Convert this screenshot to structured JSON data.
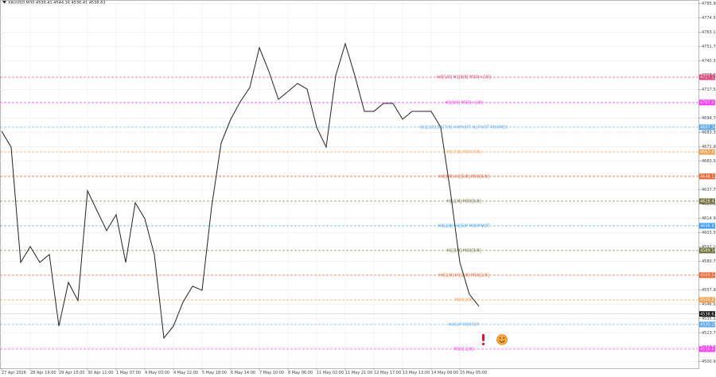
{
  "chart_data": {
    "type": "line",
    "title": "XAUUSD,M30 4536.41 4544.16 4536.41 4538.62",
    "categories": [
      "27 Apr 2026",
      null,
      null,
      "28 Apr 19:00",
      null,
      null,
      "29 Apr 15:00",
      null,
      null,
      "30 Apr 11:00",
      null,
      null,
      "1 May 07:00",
      null,
      null,
      "4 May 03:00",
      null,
      null,
      "4 May 22:00",
      null,
      null,
      "5 May 18:00",
      null,
      null,
      "6 May 14:00",
      null,
      null,
      "7 May 10:00",
      null,
      null,
      "8 May 06:00",
      null,
      null,
      "11 May 02:00",
      null,
      null,
      "11 May 21:00",
      null,
      null,
      "12 May 17:00",
      null,
      null,
      "13 May 13:00",
      null,
      null,
      "14 May 09:00",
      null,
      null,
      "15 May 05:00",
      null,
      null
    ],
    "values": [
      4684.2,
      4671.5,
      4579.7,
      4592.3,
      4579.7,
      4586.0,
      4529.0,
      4563.8,
      4549.3,
      4636.7,
      4620.8,
      4605.0,
      4617.7,
      4579.7,
      4627.2,
      4614.5,
      4586.0,
      4519.5,
      4529.0,
      4548.0,
      4560.7,
      4557.5,
      4624.0,
      4674.7,
      4693.7,
      4707.6,
      4719.0,
      4750.7,
      4731.7,
      4709.5,
      4715.8,
      4722.2,
      4717.7,
      4687.3,
      4671.5,
      4728.5,
      4753.8,
      4728.5,
      4700.0,
      4700.0,
      4706.3,
      4706.3,
      4693.7,
      4700.0,
      4700.0,
      4700.0,
      4687.3,
      4636.7,
      4579.7,
      4554.3,
      4544.8
    ],
    "color": "#222222",
    "ylim": [
      4495.4,
      4786.1
    ],
    "yticks": [
      {
        "value": 4500.9,
        "label": "4500.90"
      },
      {
        "value": 4512.3,
        "label": "4512.30"
      },
      {
        "value": 4523.7,
        "label": "4523.70"
      },
      {
        "value": 4535.1,
        "label": "4535.10"
      },
      {
        "value": 4546.5,
        "label": "4546.50"
      },
      {
        "value": 4557.9,
        "label": "4557.90"
      },
      {
        "value": 4569.3,
        "label": "4569.30"
      },
      {
        "value": 4580.7,
        "label": "4580.70"
      },
      {
        "value": 4592.1,
        "label": "4592.10"
      },
      {
        "value": 4603.5,
        "label": "4603.50"
      },
      {
        "value": 4614.9,
        "label": "4614.90"
      },
      {
        "value": 4626.3,
        "label": "4626.30"
      },
      {
        "value": 4637.7,
        "label": "4637.70"
      },
      {
        "value": 4649.1,
        "label": "4649.10"
      },
      {
        "value": 4660.5,
        "label": "4660.50"
      },
      {
        "value": 4671.9,
        "label": "4671.90"
      },
      {
        "value": 4683.3,
        "label": "4683.30"
      },
      {
        "value": 4694.7,
        "label": "4694.70"
      },
      {
        "value": 4706.1,
        "label": "4706.10"
      },
      {
        "value": 4717.5,
        "label": "4717.50"
      },
      {
        "value": 4728.9,
        "label": "4728.90"
      },
      {
        "value": 4740.3,
        "label": "4740.30"
      },
      {
        "value": 4751.7,
        "label": "4751.70"
      },
      {
        "value": 4763.1,
        "label": "4763.10"
      },
      {
        "value": 4774.5,
        "label": "4774.50"
      },
      {
        "value": 4785.9,
        "label": "4785.90"
      }
    ],
    "grid": true,
    "levels": [
      {
        "label": "H4[5/8] H1[8/8] M30[+2/8]",
        "value": 4727.17,
        "color": "#e0407a"
      },
      {
        "label": "H1[8/8] M30[+1/8]",
        "value": 4707.03,
        "color": "#ff33ff"
      },
      {
        "label": "W1[2/8] D1[7/8] H4PIVOT H1PIVOT M30RED",
        "value": 4687.34,
        "color": "#5aa8f0"
      },
      {
        "label": "H1[7/8] M30[7/8]",
        "value": 4667.69,
        "color": "#f5a04a"
      },
      {
        "label": "H4[3/8] H1[5/8] M30[6/8]",
        "value": 4648.12,
        "color": "#f0602a"
      },
      {
        "label": "H1[1/8] M30[5/8]",
        "value": 4628.43,
        "color": "#6f6f3a"
      },
      {
        "label": "H4[2/8] H1SUP M30PIVOT",
        "value": 4608.81,
        "color": "#3399ff"
      },
      {
        "label": "H1[3/8] M30[3/8]",
        "value": 4589.16,
        "color": "#6f6f3a"
      },
      {
        "label": "H4[1/8] H1[2/8] M30[2/8]",
        "value": 4569.54,
        "color": "#f0602a"
      },
      {
        "label": "M30[1/8]",
        "value": 4549.87,
        "color": "#f5a04a"
      },
      {
        "label": "H4SUP M30SUP",
        "value": 4530.28,
        "color": "#5aa8f0"
      },
      {
        "label": "M30[-1/8]",
        "value": 4510.63,
        "color": "#ff33ff"
      }
    ],
    "last_price": 4538.62
  }
}
